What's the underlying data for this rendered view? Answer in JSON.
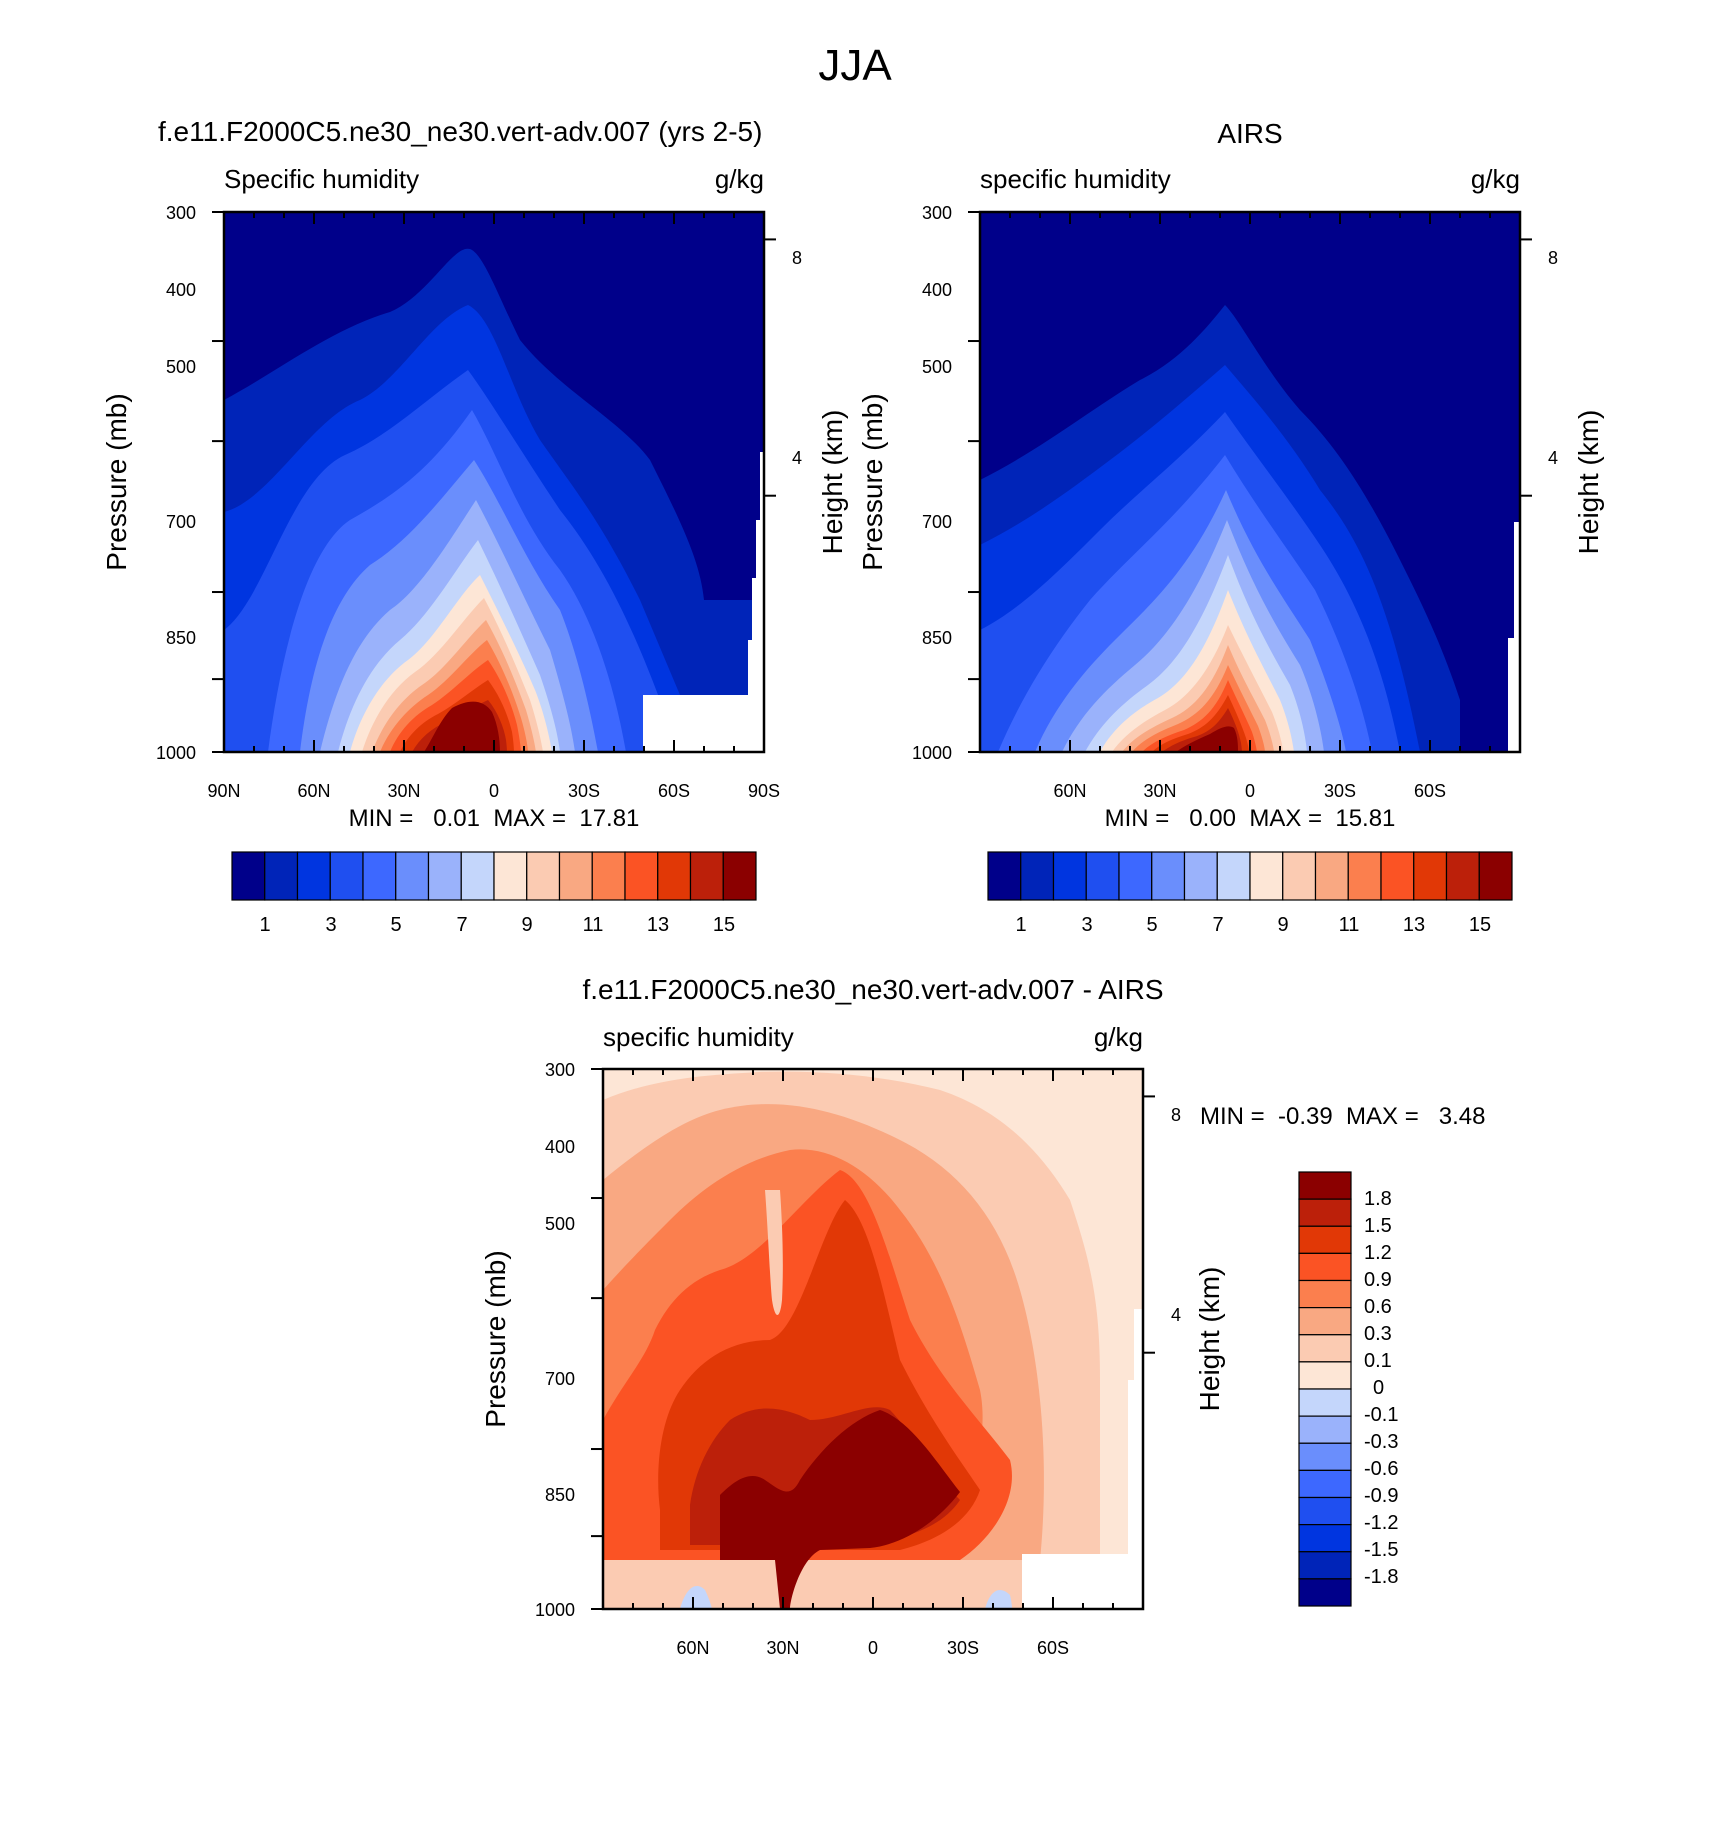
{
  "figure": {
    "title": "JJA"
  },
  "panels": {
    "model": {
      "title": "f.e11.F2000C5.ne30_ne30.vert-adv.007 (yrs 2-5)",
      "left_label": "Specific humidity",
      "right_label": "g/kg",
      "min_max": "MIN =   0.01  MAX =  17.81",
      "ylabel": "Pressure (mb)",
      "ylabel_right": "Height (km)"
    },
    "obs": {
      "title": "AIRS",
      "left_label": "specific humidity",
      "right_label": "g/kg",
      "min_max": "MIN =   0.00  MAX =  15.81",
      "ylabel": "Pressure (mb)",
      "ylabel_right": "Height (km)"
    },
    "diff": {
      "title": "f.e11.F2000C5.ne30_ne30.vert-adv.007 - AIRS",
      "left_label": "specific humidity",
      "right_label": "g/kg",
      "min_max": "MIN =  -0.39  MAX =   3.48",
      "ylabel": "Pressure (mb)",
      "ylabel_right": "Height (km)"
    }
  },
  "chart_data": [
    {
      "type": "heatmap",
      "title": "f.e11.F2000C5.ne30_ne30.vert-adv.007 (yrs 2-5)",
      "subtitle_left": "Specific humidity",
      "units": "g/kg",
      "ylabel": "Pressure (mb)",
      "ylabel_right": "Height (km)",
      "x_ticks": [
        "90N",
        "60N",
        "30N",
        "0",
        "30S",
        "60S",
        "90S"
      ],
      "y_ticks": [
        "300",
        "400",
        "500",
        "700",
        "850",
        "1000"
      ],
      "y_right_ticks": [
        "8",
        "4"
      ],
      "xlim": [
        90,
        -90
      ],
      "ylim": [
        1000,
        300
      ],
      "colorbar_ticks": [
        "1",
        "3",
        "5",
        "7",
        "9",
        "11",
        "13",
        "15"
      ],
      "levels": [
        1,
        2,
        3,
        4,
        5,
        6,
        7,
        8,
        9,
        10,
        11,
        12,
        13,
        14,
        15
      ],
      "min": 0.01,
      "max": 17.81,
      "surface_mask_note": "white region near 55S-85S below ~900 mb"
    },
    {
      "type": "heatmap",
      "title": "AIRS",
      "subtitle_left": "specific humidity",
      "units": "g/kg",
      "ylabel": "Pressure (mb)",
      "ylabel_right": "Height (km)",
      "x_ticks": [
        "60N",
        "30N",
        "0",
        "30S",
        "60S"
      ],
      "y_ticks": [
        "300",
        "400",
        "500",
        "700",
        "850",
        "1000"
      ],
      "y_right_ticks": [
        "8",
        "4"
      ],
      "xlim": [
        90,
        -90
      ],
      "ylim": [
        1000,
        300
      ],
      "colorbar_ticks": [
        "1",
        "3",
        "5",
        "7",
        "9",
        "11",
        "13",
        "15"
      ],
      "levels": [
        1,
        2,
        3,
        4,
        5,
        6,
        7,
        8,
        9,
        10,
        11,
        12,
        13,
        14,
        15
      ],
      "min": 0.0,
      "max": 15.81
    },
    {
      "type": "heatmap",
      "title": "f.e11.F2000C5.ne30_ne30.vert-adv.007 - AIRS",
      "subtitle_left": "specific humidity",
      "units": "g/kg",
      "ylabel": "Pressure (mb)",
      "ylabel_right": "Height (km)",
      "x_ticks": [
        "60N",
        "30N",
        "0",
        "30S",
        "60S"
      ],
      "y_ticks": [
        "300",
        "400",
        "500",
        "700",
        "850",
        "1000"
      ],
      "y_right_ticks": [
        "8",
        "4"
      ],
      "xlim": [
        90,
        -90
      ],
      "ylim": [
        1000,
        300
      ],
      "colorbar_ticks": [
        "1.8",
        "1.5",
        "1.2",
        "0.9",
        "0.6",
        "0.3",
        "0.1",
        "0",
        "-0.1",
        "-0.3",
        "-0.6",
        "-0.9",
        "-1.2",
        "-1.5",
        "-1.8"
      ],
      "levels": [
        -1.8,
        -1.5,
        -1.2,
        -0.9,
        -0.6,
        -0.3,
        -0.1,
        0,
        0.1,
        0.3,
        0.6,
        0.9,
        1.2,
        1.5,
        1.8
      ],
      "min": -0.39,
      "max": 3.48
    }
  ],
  "colors": {
    "palette": [
      "#00008a",
      "#0024b8",
      "#0035e0",
      "#1f4ff0",
      "#3d68ff",
      "#6a8efc",
      "#9ab2fb",
      "#c4d6fb",
      "#fde6d6",
      "#fbcbb2",
      "#f9a882",
      "#fb7f4e",
      "#fb5324",
      "#e13806",
      "#bc200a",
      "#8b0000"
    ],
    "axis": "#000000",
    "mask": "#ffffff"
  }
}
